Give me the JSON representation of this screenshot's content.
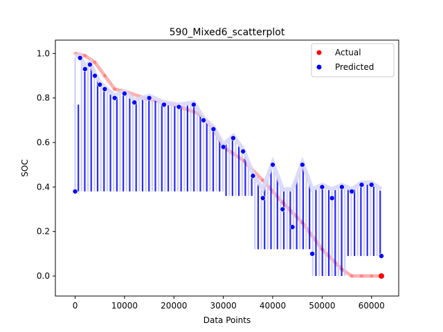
{
  "chart_data": {
    "type": "scatter",
    "title": "590_Mixed6_scatterplot",
    "xlabel": "Data Points",
    "ylabel": "SOC",
    "xlim": [
      -4000,
      65500
    ],
    "ylim": [
      -0.09,
      1.06
    ],
    "xticks": [
      0,
      10000,
      20000,
      30000,
      40000,
      50000,
      60000
    ],
    "xtick_labels": [
      "0",
      "10000",
      "20000",
      "30000",
      "40000",
      "50000",
      "60000"
    ],
    "yticks": [
      0.0,
      0.2,
      0.4,
      0.6,
      0.8,
      1.0
    ],
    "ytick_labels": [
      "0.0",
      "0.2",
      "0.4",
      "0.6",
      "0.8",
      "1.0"
    ],
    "grid": false,
    "legend_position": "top-right",
    "series": [
      {
        "name": "Actual",
        "color": "#ff0000",
        "x": [
          0,
          2000,
          4000,
          6000,
          8000,
          10000,
          14000,
          20000,
          25000,
          28000,
          30000,
          34000,
          38000,
          42000,
          46000,
          50000,
          54000,
          56000,
          58000,
          60000,
          62000
        ],
        "y": [
          1.0,
          0.99,
          0.96,
          0.9,
          0.84,
          0.83,
          0.8,
          0.77,
          0.73,
          0.66,
          0.58,
          0.52,
          0.43,
          0.33,
          0.24,
          0.12,
          0.03,
          0.0,
          0.0,
          0.0,
          0.0
        ]
      },
      {
        "name": "Predicted",
        "color": "#0000ff",
        "x": [
          0,
          1000,
          2000,
          3000,
          4000,
          5000,
          6000,
          8000,
          10000,
          12000,
          15000,
          18000,
          21000,
          24000,
          26000,
          28000,
          30000,
          32000,
          34000,
          36000,
          38000,
          40000,
          42000,
          44000,
          46000,
          48000,
          50000,
          52000,
          54000,
          56000,
          58000,
          60000,
          62000
        ],
        "y": [
          0.38,
          0.98,
          0.93,
          0.95,
          0.9,
          0.86,
          0.84,
          0.8,
          0.82,
          0.78,
          0.8,
          0.77,
          0.76,
          0.77,
          0.7,
          0.66,
          0.58,
          0.62,
          0.56,
          0.45,
          0.35,
          0.5,
          0.3,
          0.22,
          0.5,
          0.1,
          0.4,
          0.35,
          0.4,
          0.38,
          0.41,
          0.41,
          0.09
        ]
      }
    ]
  }
}
